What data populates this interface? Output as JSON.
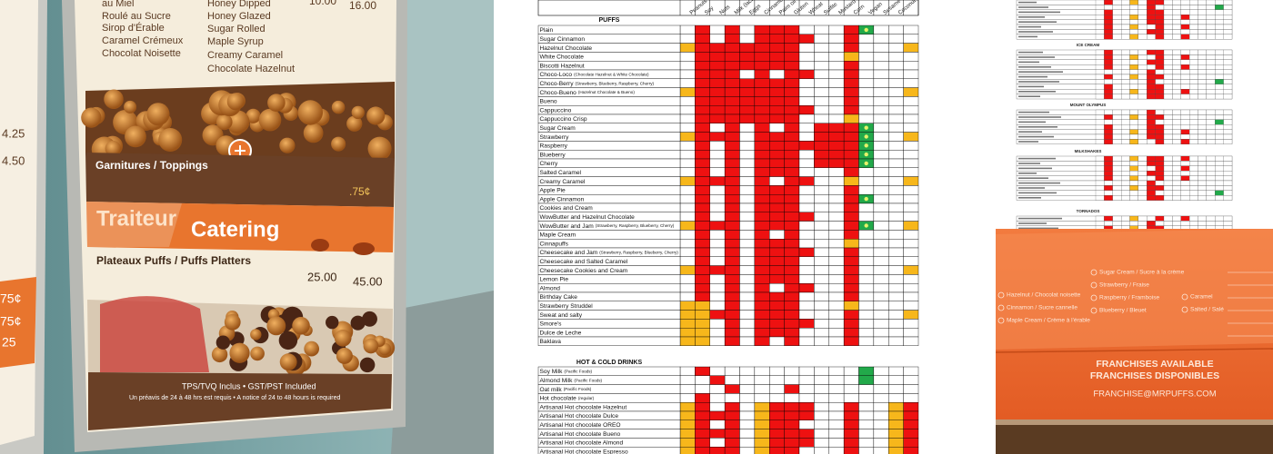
{
  "menu_photo": {
    "left_prices": [
      "4.25",
      "4.50",
      "75¢",
      "75¢",
      "25"
    ],
    "flavors_fr": [
      "au Miel",
      "Roulé au Sucre",
      "Sirop d'Érable",
      "Caramel Crémeux",
      "Chocolat Noisette"
    ],
    "flavors_en": [
      "Honey Dipped",
      "Honey Glazed",
      "Sugar Rolled",
      "Maple Syrup",
      "Creamy Caramel",
      "Chocolate Hazelnut"
    ],
    "prices_top": [
      "10.00",
      "16.00"
    ],
    "toppings": "Garnitures / Toppings",
    "toppings_price": ".75¢",
    "catering_fr": "Traiteur",
    "catering_en": "Catering",
    "platters": "Plateaux Puffs / Puffs Platters",
    "platter_prices": [
      "25.00",
      "45.00"
    ],
    "tax_note": "TPS/TVQ Inclus • GST/PST Included",
    "notice": "Un préavis de 24 à 48 hrs est requis • A notice of 24 to 48 hours is required"
  },
  "allergen_chart": {
    "columns": [
      "Peanuts",
      "Soy",
      "Nuts",
      "Milk (lactose)",
      "Eggs",
      "Cinnamon",
      "Palm oil",
      "Gluten",
      "Wheat",
      "Sulfite",
      "Mustard",
      "Corn",
      "Vegan",
      "Sesame",
      "Coconut"
    ],
    "sections": [
      {
        "title": "PUFFS",
        "rows": [
          {
            "name": "Plain"
          },
          {
            "name": "Sugar Cinnamon"
          },
          {
            "name": "Hazelnut Chocolate"
          },
          {
            "name": "White Chocolate"
          },
          {
            "name": "Biscotti Hazelnut"
          },
          {
            "name": "Choco-Loco",
            "note": "(Chocolate Hazelnut & White Chocolate)"
          },
          {
            "name": "Choco-Berry",
            "note": "(Strawberry, Blueberry, Raspberry, Cherry)"
          },
          {
            "name": "Choco-Bueno",
            "note": "(Hazelnut Chocolate & Bueno)"
          },
          {
            "name": "Bueno"
          },
          {
            "name": "Cappuccino"
          },
          {
            "name": "Cappuccino Crisp"
          },
          {
            "name": "Sugar Cream"
          },
          {
            "name": "Strawberry"
          },
          {
            "name": "Raspberry"
          },
          {
            "name": "Blueberry"
          },
          {
            "name": "Cherry"
          },
          {
            "name": "Salted Caramel"
          },
          {
            "name": "Creamy Caramel"
          },
          {
            "name": "Apple Pie"
          },
          {
            "name": "Apple Cinnamon"
          },
          {
            "name": "Cookies and Cream"
          },
          {
            "name": "WowButter and Hazelnut Chocolate"
          },
          {
            "name": "WowButter and Jam",
            "note": "(Strawberry, Raspberry, Blueberry, Cherry)"
          },
          {
            "name": "Maple Cream"
          },
          {
            "name": "Cinnapuffs"
          },
          {
            "name": "Cheesecake and Jam",
            "note": "(Strawberry, Raspberry, Blueberry, Cherry)"
          },
          {
            "name": "Cheesecake and Salted Caramel"
          },
          {
            "name": "Cheesecake Cookies and Cream"
          },
          {
            "name": "Lemon Pie"
          },
          {
            "name": "Almond"
          },
          {
            "name": "Birthday Cake"
          },
          {
            "name": "Strawberry Struddel"
          },
          {
            "name": "Sweat and salty"
          },
          {
            "name": "Smore's"
          },
          {
            "name": "Dulce de Leche"
          },
          {
            "name": "Baklava"
          }
        ]
      },
      {
        "title": "HOT & COLD DRINKS",
        "rows": [
          {
            "name": "Soy Milk",
            "note": "(Pacific Foods)"
          },
          {
            "name": "Almond Milk",
            "note": "(Pacific Foods)"
          },
          {
            "name": "Oat milk",
            "note": "(Pacific Foods)"
          },
          {
            "name": "Hot chocolate",
            "note": "(regular)"
          },
          {
            "name": "Artisanal Hot chocolate Hazelnut"
          },
          {
            "name": "Artisanal Hot chocolate Dulce"
          },
          {
            "name": "Artisanal Hot chocolate OREO"
          },
          {
            "name": "Artisanal Hot chocolate Bueno"
          },
          {
            "name": "Artisanal Hot chocolate Almond"
          },
          {
            "name": "Artisanal Hot chocolate Espresso"
          }
        ]
      }
    ]
  },
  "thumbnail": {
    "sections": [
      "ICE CREAM",
      "MOUNT OLYMPUS",
      "MILKSHAKES",
      "TORNADOS"
    ]
  },
  "box_photo": {
    "form_left": [
      "Hazelnut / Chocolat noisette",
      "Cinnamon / Sucre cannelle",
      "Maple Cream / Crème à l'érable"
    ],
    "form_mid": [
      "Sugar Cream / Sucre à la crème",
      "Strawberry / Fraise",
      "Raspberry / Framboise",
      "Blueberry / Bleuet"
    ],
    "form_right": [
      "Caramel",
      "Salted / Salé"
    ],
    "franchise_en": "FRANCHISES AVAILABLE",
    "franchise_fr": "FRANCHISES DISPONIBLES",
    "email": "FRANCHISE@MRPUFFS.COM"
  }
}
